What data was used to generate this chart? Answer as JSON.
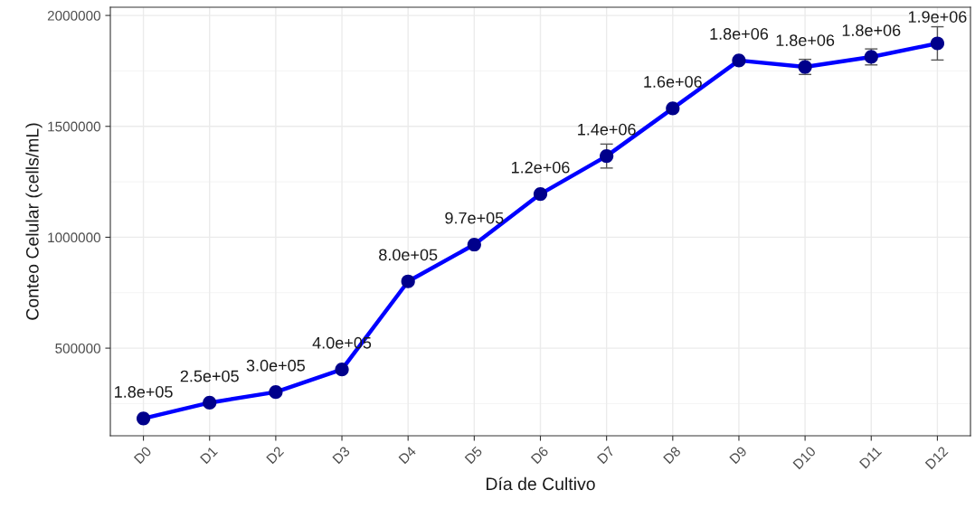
{
  "chart_data": {
    "type": "line",
    "xlabel": "Día de Cultivo",
    "ylabel": "Conteo Celular (cells/mL)",
    "categories": [
      "D0",
      "D1",
      "D2",
      "D3",
      "D4",
      "D5",
      "D6",
      "D7",
      "D8",
      "D9",
      "D10",
      "D11",
      "D12"
    ],
    "series": [
      {
        "color": "#0000ff",
        "colors": [
          "#00008b",
          "#00008b",
          "#00008b",
          "#00008b",
          "#00008b",
          "#00008b",
          "#00008b",
          "#00008b",
          "#00008b",
          "#00008b",
          "#00008b",
          "#00008b",
          "#00008b"
        ],
        "values": [
          183000,
          254000,
          302000,
          404000,
          801000,
          967000,
          1195000,
          1366000,
          1581000,
          1797000,
          1768000,
          1813000,
          1874000
        ],
        "errors": [
          null,
          null,
          null,
          null,
          null,
          null,
          null,
          54000,
          null,
          null,
          34000,
          36000,
          75000
        ],
        "value_labels": [
          "1.8e+05",
          "2.5e+05",
          "3.0e+05",
          "4.0e+05",
          "8.0e+05",
          "9.7e+05",
          "1.2e+06",
          "1.4e+06",
          "1.6e+06",
          "1.8e+06",
          "1.8e+06",
          "1.8e+06",
          "1.9e+06"
        ]
      }
    ],
    "ylim": [
      105000,
      2037000
    ],
    "yticks": [
      500000,
      1000000,
      1500000,
      2000000
    ],
    "grid": true,
    "marker": "circle",
    "line_style": "solid",
    "legend": false
  }
}
